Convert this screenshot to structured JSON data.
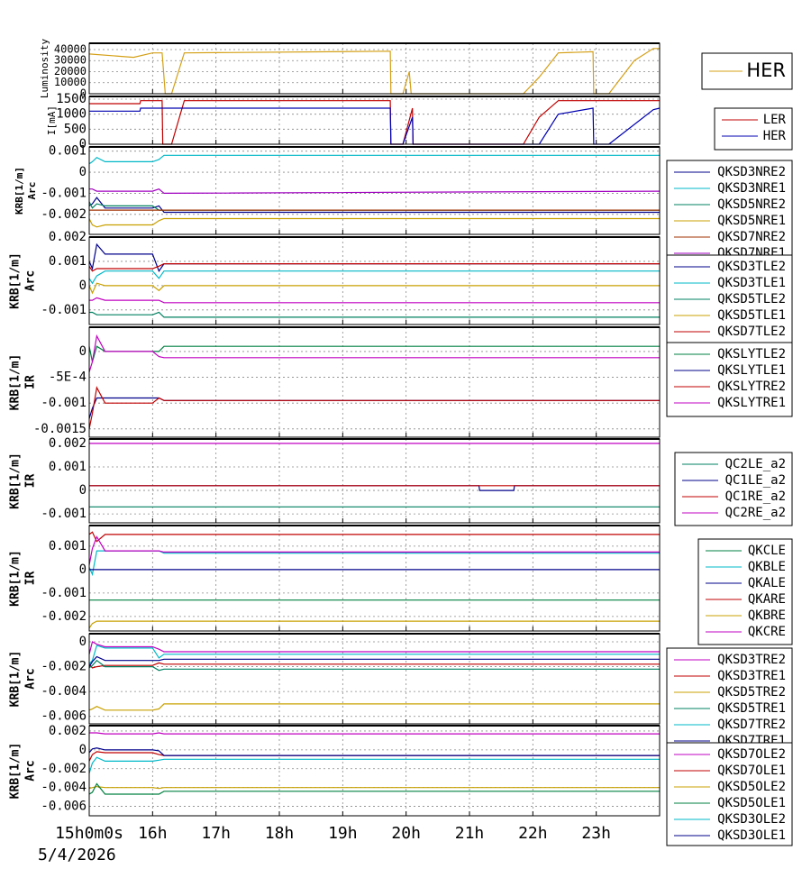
{
  "chart_data": [
    {
      "type": "line",
      "ylabel": [
        "Luminosity"
      ],
      "xlim": [
        15,
        24
      ],
      "ylim": [
        0,
        45700
      ],
      "yticks": [
        0,
        10000,
        20000,
        30000,
        40000
      ],
      "x": [
        15,
        15.7,
        16.0,
        16.15,
        16.2,
        16.3,
        16.5,
        19.75,
        19.76,
        19.95,
        20.05,
        20.08,
        21.85,
        22.1,
        22.4,
        22.95,
        22.96,
        23.2,
        23.6,
        23.9,
        24
      ],
      "series": [
        {
          "name": "HER",
          "color": "#d4a017",
          "values": [
            36000,
            33000,
            37000,
            37000,
            0,
            0,
            37000,
            38500,
            0,
            0,
            20000,
            0,
            0,
            15000,
            37000,
            38000,
            0,
            0,
            30000,
            41000,
            41000
          ]
        }
      ]
    },
    {
      "type": "line",
      "ylabel": [
        "I[mA]"
      ],
      "xlim": [
        15,
        24
      ],
      "ylim": [
        0,
        1590
      ],
      "yticks": [
        0,
        500,
        1000,
        1500
      ],
      "x": [
        15,
        15.8,
        15.81,
        16.15,
        16.16,
        16.3,
        16.5,
        19.75,
        19.76,
        19.95,
        20.1,
        20.11,
        21.85,
        22.1,
        22.4,
        22.95,
        22.96,
        23.2,
        23.9,
        24
      ],
      "series": [
        {
          "name": "LER",
          "color": "#c00000",
          "values": [
            1350,
            1350,
            1450,
            1450,
            0,
            0,
            1450,
            1450,
            0,
            0,
            1200,
            0,
            0,
            900,
            1450,
            1450,
            1450,
            1450,
            1450,
            1450
          ]
        },
        {
          "name": "HER",
          "color": "#0000b0",
          "values": [
            1100,
            1100,
            1200,
            1200,
            1200,
            1200,
            1200,
            1200,
            0,
            0,
            900,
            0,
            0,
            0,
            1000,
            1200,
            0,
            0,
            1150,
            1200
          ]
        }
      ]
    },
    {
      "type": "line",
      "ylabel": [
        "KRB[1/m]",
        "Arc"
      ],
      "xlim": [
        15,
        24
      ],
      "ylim": [
        -0.00295,
        0.0012
      ],
      "yticks": [
        -0.002,
        -0.001,
        0,
        0.001
      ],
      "x": [
        15,
        15.05,
        15.12,
        15.25,
        16.0,
        16.1,
        16.18,
        24
      ],
      "series": [
        {
          "name": "QKSD3NRE2",
          "color": "#00008b",
          "values": [
            -0.0016,
            -0.0015,
            -0.0012,
            -0.0017,
            -0.0017,
            -0.0016,
            -0.0019,
            -0.0019
          ]
        },
        {
          "name": "QKSD3NRE1",
          "color": "#00b8c8",
          "values": [
            0.0004,
            0.0005,
            0.0007,
            0.0005,
            0.0005,
            0.0006,
            0.0008,
            0.0008
          ]
        },
        {
          "name": "QKSD5NRE2",
          "color": "#008060",
          "values": [
            -0.0014,
            -0.0017,
            -0.0015,
            -0.0016,
            -0.0016,
            -0.0018,
            -0.0018,
            -0.0018
          ]
        },
        {
          "name": "QKSD5NRE1",
          "color": "#c8a000",
          "values": [
            -0.0022,
            -0.0025,
            -0.0026,
            -0.0025,
            -0.0025,
            -0.0023,
            -0.0022,
            -0.0022
          ]
        },
        {
          "name": "QKSD7NRE2",
          "color": "#a03000",
          "values": [
            -0.0018,
            -0.0018,
            -0.0018,
            -0.0018,
            -0.0018,
            -0.0018,
            -0.0018,
            -0.0018
          ]
        },
        {
          "name": "QKSD7NRE1",
          "color": "#a000c0",
          "values": [
            -0.0008,
            -0.0008,
            -0.0009,
            -0.0009,
            -0.0009,
            -0.0008,
            -0.001,
            -0.0009
          ]
        }
      ]
    },
    {
      "type": "line",
      "ylabel": [
        "KRB[1/m]",
        "Arc"
      ],
      "xlim": [
        15,
        24
      ],
      "ylim": [
        -0.0016,
        0.002
      ],
      "yticks": [
        -0.001,
        0,
        0.001,
        0.002
      ],
      "x": [
        15,
        15.05,
        15.12,
        15.25,
        16.0,
        16.1,
        16.18,
        24
      ],
      "series": [
        {
          "name": "QKSD3TLE2",
          "color": "#00008b",
          "values": [
            0.001,
            0.0007,
            0.0017,
            0.0013,
            0.0013,
            0.0006,
            0.0009,
            0.0009
          ]
        },
        {
          "name": "QKSD3TLE1",
          "color": "#00b8c8",
          "values": [
            0.0003,
            0.0001,
            0.0004,
            0.0006,
            0.0006,
            0.0003,
            0.0006,
            0.0006
          ]
        },
        {
          "name": "QKSD5TLE2",
          "color": "#008060",
          "values": [
            -0.0011,
            -0.0011,
            -0.0012,
            -0.0012,
            -0.0012,
            -0.0011,
            -0.0013,
            -0.0013
          ]
        },
        {
          "name": "QKSD5TLE1",
          "color": "#c8a000",
          "values": [
            0,
            -0.0003,
            0.0001,
            0,
            0,
            -0.0002,
            0,
            0
          ]
        },
        {
          "name": "QKSD7TLE2",
          "color": "#c00000",
          "values": [
            0.0008,
            0.0006,
            0.0007,
            0.0007,
            0.0007,
            0.0008,
            0.0009,
            0.0009
          ]
        },
        {
          "name": "QKSD7TLE1",
          "color": "#c000c0",
          "values": [
            -0.0006,
            -0.0006,
            -0.0005,
            -0.0006,
            -0.0006,
            -0.0006,
            -0.0007,
            -0.0007
          ]
        }
      ]
    },
    {
      "type": "line",
      "ylabel": [
        "KRB[1/m]",
        "IR"
      ],
      "xlim": [
        15,
        24
      ],
      "ylim": [
        -0.00166,
        0.00047
      ],
      "yticks": [
        -0.0015,
        -0.001,
        {
          "value": -0.0005,
          "label": "-5E-4"
        },
        0
      ],
      "x": [
        15,
        15.05,
        15.12,
        15.25,
        16.0,
        16.1,
        16.18,
        24
      ],
      "series": [
        {
          "name": "QKSLYTLE2",
          "color": "#008040",
          "values": [
            0.0001,
            -0.0002,
            0.0001,
            0,
            0,
            0,
            0.0001,
            0.0001
          ]
        },
        {
          "name": "QKSLYTLE1",
          "color": "#00008b",
          "values": [
            -0.0013,
            -0.0011,
            -0.0009,
            -0.0009,
            -0.0009,
            -0.0009,
            -0.00095,
            -0.00095
          ]
        },
        {
          "name": "QKSLYTRE2",
          "color": "#c00000",
          "values": [
            -0.0015,
            -0.0012,
            -0.0007,
            -0.001,
            -0.001,
            -0.0009,
            -0.00095,
            -0.00095
          ]
        },
        {
          "name": "QKSLYTRE1",
          "color": "#c000c0",
          "values": [
            -0.0004,
            -0.0002,
            0.0003,
            0,
            0,
            -0.0001,
            -0.00012,
            -0.00012
          ]
        }
      ]
    },
    {
      "type": "line",
      "ylabel": [
        "KRB[1/m]",
        "IR"
      ],
      "xlim": [
        15,
        24
      ],
      "ylim": [
        -0.00138,
        0.00219
      ],
      "yticks": [
        -0.001,
        0,
        0.001,
        0.002
      ],
      "x": [
        15,
        21.15,
        21.16,
        21.7,
        21.71,
        24
      ],
      "series": [
        {
          "name": "QC2LE_a2",
          "color": "#008060",
          "values": [
            -0.0007,
            -0.0007,
            -0.0007,
            -0.0007,
            -0.0007,
            -0.0007
          ]
        },
        {
          "name": "QC1LE_a2",
          "color": "#00008b",
          "values": [
            0.0002,
            0.0002,
            0,
            0,
            0.0002,
            0.0002
          ]
        },
        {
          "name": "QC1RE_a2",
          "color": "#c00000",
          "values": [
            0.0002,
            0.0002,
            0.0002,
            0.0002,
            0.0002,
            0.0002
          ]
        },
        {
          "name": "QC2RE_a2",
          "color": "#c000c0",
          "values": [
            0.002,
            0.002,
            0.002,
            0.002,
            0.002,
            0.002
          ]
        }
      ]
    },
    {
      "type": "line",
      "ylabel": [
        "KRB[1/m]",
        "IR"
      ],
      "xlim": [
        15,
        24
      ],
      "ylim": [
        -0.00262,
        0.00188
      ],
      "yticks": [
        -0.002,
        -0.001,
        0,
        0.001
      ],
      "x": [
        15,
        15.05,
        15.12,
        15.25,
        16.0,
        16.1,
        16.18,
        24
      ],
      "series": [
        {
          "name": "QKCLE",
          "color": "#008040",
          "values": [
            -0.0013,
            -0.0013,
            -0.0013,
            -0.0013,
            -0.0013,
            -0.0013,
            -0.0013,
            -0.0013
          ]
        },
        {
          "name": "QKBLE",
          "color": "#00b8c8",
          "values": [
            0.0001,
            -0.0002,
            0.0008,
            0.0008,
            0.0008,
            0.0008,
            0.0007,
            0.0007
          ]
        },
        {
          "name": "QKALE",
          "color": "#00008b",
          "values": [
            0,
            0,
            0,
            0,
            0,
            0,
            0,
            0
          ]
        },
        {
          "name": "QKARE",
          "color": "#c00000",
          "values": [
            0.0015,
            0.0016,
            0.0012,
            0.0015,
            0.0015,
            0.0015,
            0.0015,
            0.0015
          ]
        },
        {
          "name": "QKBRE",
          "color": "#c8a000",
          "values": [
            -0.0025,
            -0.0023,
            -0.0022,
            -0.0022,
            -0.0022,
            -0.0022,
            -0.0022,
            -0.0022
          ]
        },
        {
          "name": "QKCRE",
          "color": "#c000c0",
          "values": [
            0.0002,
            0.0009,
            0.0014,
            0.0008,
            0.0008,
            0.0008,
            0.00075,
            0.00075
          ]
        }
      ]
    },
    {
      "type": "line",
      "ylabel": [
        "KRB[1/m]",
        "Arc"
      ],
      "xlim": [
        15,
        24
      ],
      "ylim": [
        -0.0066,
        0.00065
      ],
      "yticks": [
        -0.006,
        -0.004,
        -0.002,
        0
      ],
      "x": [
        15,
        15.05,
        15.12,
        15.25,
        16.0,
        16.1,
        16.18,
        24
      ],
      "series": [
        {
          "name": "QKSD3TRE2",
          "color": "#c000c0",
          "values": [
            -0.001,
            0,
            -0.0002,
            -0.0004,
            -0.0004,
            -0.0006,
            -0.0008,
            -0.0008
          ]
        },
        {
          "name": "QKSD3TRE1",
          "color": "#c00000",
          "values": [
            -0.0018,
            -0.0021,
            -0.002,
            -0.0019,
            -0.0019,
            -0.0017,
            -0.0018,
            -0.0018
          ]
        },
        {
          "name": "QKSD5TRE2",
          "color": "#c8a000",
          "values": [
            -0.0055,
            -0.0054,
            -0.0052,
            -0.0055,
            -0.0055,
            -0.0054,
            -0.005,
            -0.005
          ]
        },
        {
          "name": "QKSD5TRE1",
          "color": "#008060",
          "values": [
            -0.0021,
            -0.0019,
            -0.0015,
            -0.002,
            -0.002,
            -0.0023,
            -0.0022,
            -0.0022
          ]
        },
        {
          "name": "QKSD7TRE2",
          "color": "#00b8c8",
          "values": [
            -0.0018,
            -0.0015,
            -0.0003,
            -0.0005,
            -0.0005,
            -0.0013,
            -0.001,
            -0.001
          ]
        },
        {
          "name": "QKSD7TRE1",
          "color": "#00008b",
          "values": [
            -0.002,
            -0.0016,
            -0.0012,
            -0.0015,
            -0.0015,
            -0.0015,
            -0.0014,
            -0.0014
          ]
        }
      ]
    },
    {
      "type": "line",
      "ylabel": [
        "KRB[1/m]",
        "Arc"
      ],
      "xlim": [
        15,
        24
      ],
      "ylim": [
        -0.007,
        0.00257
      ],
      "yticks": [
        -0.006,
        -0.004,
        -0.002,
        0,
        0.002
      ],
      "x": [
        15,
        15.05,
        15.12,
        15.25,
        16.0,
        16.1,
        16.18,
        24
      ],
      "xticks": [
        {
          "value": 15,
          "label": "15h0m0s"
        },
        {
          "value": 16,
          "label": "16h"
        },
        {
          "value": 17,
          "label": "17h"
        },
        {
          "value": 18,
          "label": "18h"
        },
        {
          "value": 19,
          "label": "19h"
        },
        {
          "value": 20,
          "label": "20h"
        },
        {
          "value": 21,
          "label": "21h"
        },
        {
          "value": 22,
          "label": "22h"
        },
        {
          "value": 23,
          "label": "23h"
        }
      ],
      "xlabel": "5/4/2026",
      "series": [
        {
          "name": "QKSD7OLE2",
          "color": "#c000c0",
          "values": [
            0.0018,
            0.0018,
            0.0018,
            0.0017,
            0.0017,
            0.0018,
            0.0017,
            0.0017
          ]
        },
        {
          "name": "QKSD7OLE1",
          "color": "#c00000",
          "values": [
            -0.0012,
            -0.0005,
            -0.0002,
            -0.0003,
            -0.0003,
            -0.0005,
            -0.0006,
            -0.0006
          ]
        },
        {
          "name": "QKSD5OLE2",
          "color": "#c8a000",
          "values": [
            -0.0041,
            -0.004,
            -0.0039,
            -0.004,
            -0.004,
            -0.0041,
            -0.004,
            -0.004
          ]
        },
        {
          "name": "QKSD5OLE1",
          "color": "#008040",
          "values": [
            -0.0047,
            -0.0045,
            -0.0036,
            -0.0047,
            -0.0047,
            -0.0047,
            -0.0044,
            -0.0044
          ]
        },
        {
          "name": "QKSD3OLE2",
          "color": "#00b8c8",
          "values": [
            -0.0025,
            -0.0014,
            -0.0008,
            -0.0012,
            -0.0012,
            -0.0011,
            -0.001,
            -0.001
          ]
        },
        {
          "name": "QKSD3OLE1",
          "color": "#00008b",
          "values": [
            -0.0003,
            0.0001,
            0.0002,
            0,
            0,
            -0.0001,
            -0.0006,
            -0.0006
          ]
        }
      ]
    }
  ]
}
